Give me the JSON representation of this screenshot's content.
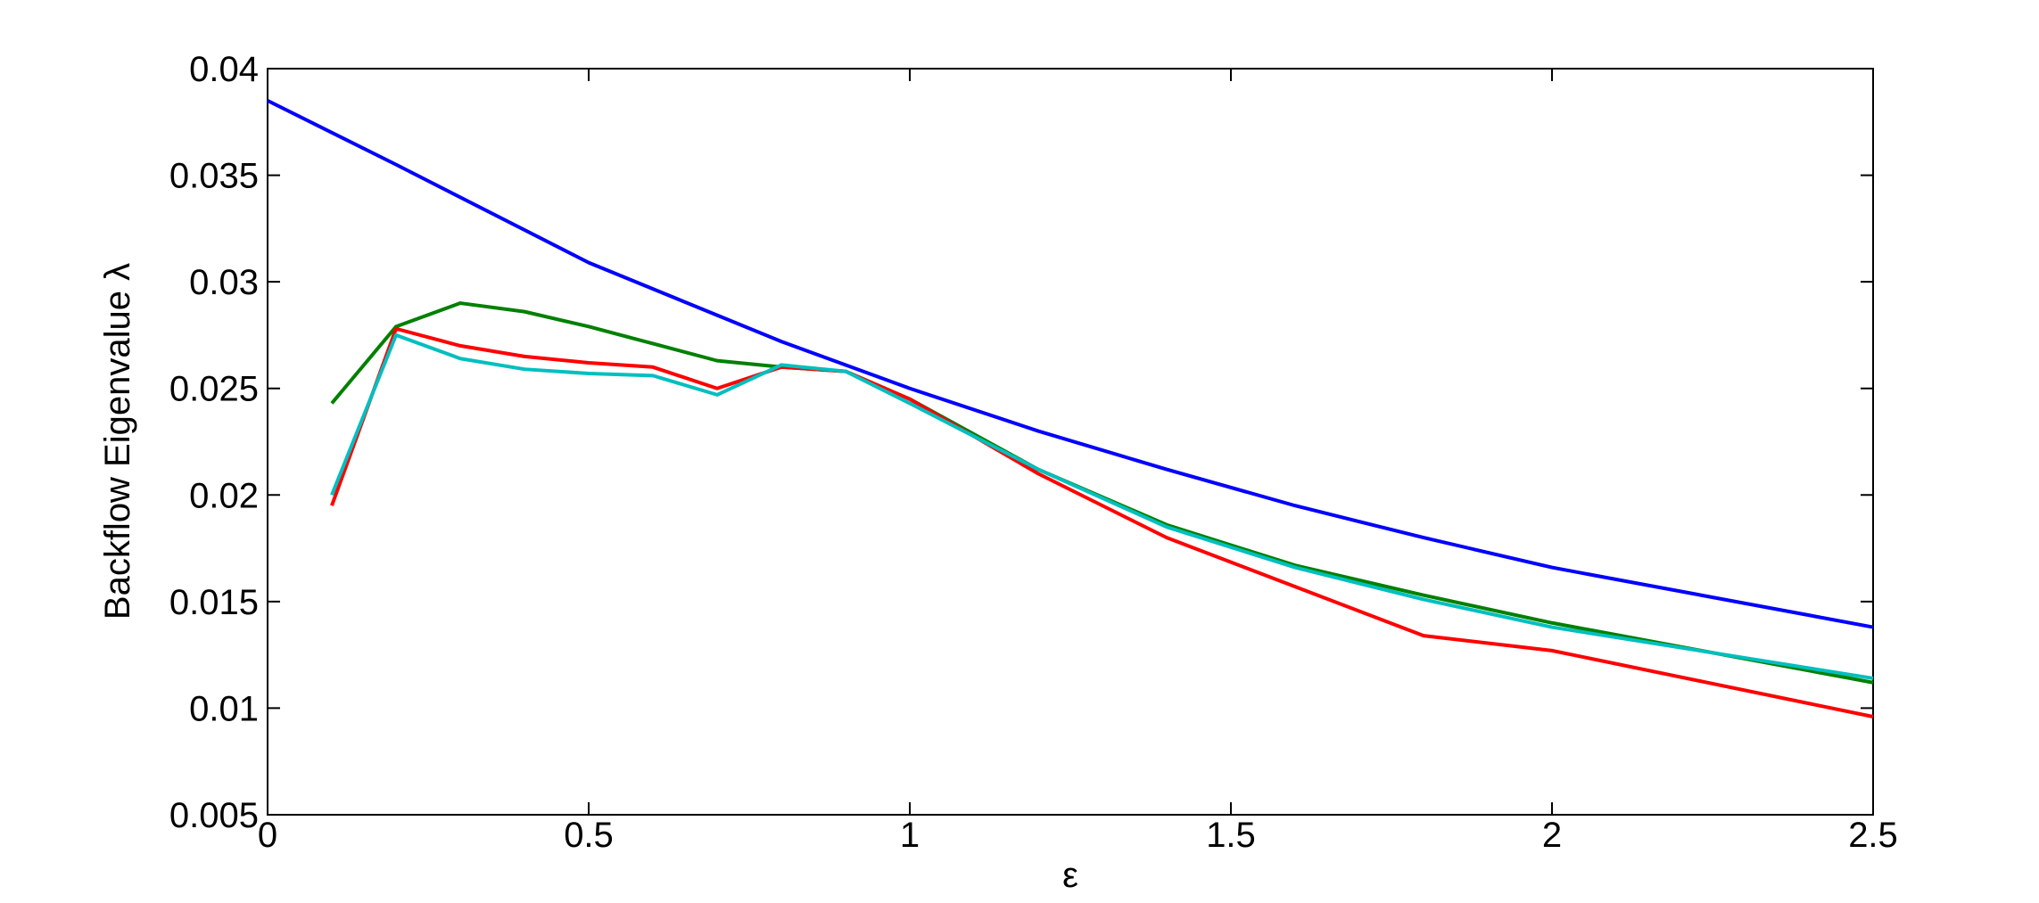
{
  "chart_data": {
    "type": "line",
    "x_label": "ε",
    "y_label": "Backflow Eigenvalue λ",
    "xlim": [
      0,
      2.5
    ],
    "xticks": [
      0,
      0.5,
      1,
      1.5,
      2,
      2.5
    ],
    "ylim": [
      0.005,
      0.04
    ],
    "yticks": [
      0.005,
      0.01,
      0.015,
      0.02,
      0.025,
      0.03,
      0.035,
      0.04
    ],
    "series": [
      {
        "color": "#0000ff",
        "x": [
          0,
          0.2,
          0.5,
          0.8,
          1,
          1.2,
          1.4,
          1.6,
          1.8,
          2,
          2.5
        ],
        "values": [
          0.0385,
          0.0355,
          0.0309,
          0.0272,
          0.025,
          0.023,
          0.0212,
          0.0195,
          0.018,
          0.0166,
          0.0138
        ]
      },
      {
        "color": "#008000",
        "x": [
          0.1,
          0.2,
          0.3,
          0.4,
          0.5,
          0.6,
          0.7,
          0.8,
          0.9,
          1,
          1.2,
          1.4,
          1.6,
          1.8,
          2,
          2.5
        ],
        "values": [
          0.0243,
          0.0279,
          0.029,
          0.0286,
          0.0279,
          0.0271,
          0.0263,
          0.026,
          0.0258,
          0.0245,
          0.0212,
          0.0186,
          0.0167,
          0.0153,
          0.014,
          0.0112
        ]
      },
      {
        "color": "#ff0000",
        "x": [
          0.1,
          0.2,
          0.3,
          0.4,
          0.5,
          0.6,
          0.7,
          0.8,
          0.9,
          1,
          1.2,
          1.4,
          1.6,
          1.8,
          2,
          2.5
        ],
        "values": [
          0.0195,
          0.0278,
          0.027,
          0.0265,
          0.0262,
          0.026,
          0.025,
          0.026,
          0.0258,
          0.0245,
          0.021,
          0.018,
          0.0157,
          0.0134,
          0.0127,
          0.0096
        ]
      },
      {
        "color": "#00bfbf",
        "x": [
          0.1,
          0.2,
          0.3,
          0.4,
          0.5,
          0.6,
          0.7,
          0.8,
          0.9,
          1,
          1.2,
          1.4,
          1.6,
          1.8,
          2,
          2.5
        ],
        "values": [
          0.02,
          0.0275,
          0.0264,
          0.0259,
          0.0257,
          0.0256,
          0.0247,
          0.0261,
          0.0258,
          0.0243,
          0.0212,
          0.0185,
          0.0166,
          0.0151,
          0.0138,
          0.0114
        ]
      }
    ]
  }
}
